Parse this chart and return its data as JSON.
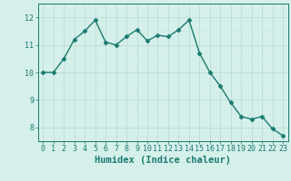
{
  "x": [
    0,
    1,
    2,
    3,
    4,
    5,
    6,
    7,
    8,
    9,
    10,
    11,
    12,
    13,
    14,
    15,
    16,
    17,
    18,
    19,
    20,
    21,
    22,
    23
  ],
  "y": [
    10.0,
    10.0,
    10.5,
    11.2,
    11.5,
    11.9,
    11.1,
    11.0,
    11.3,
    11.55,
    11.15,
    11.35,
    11.3,
    11.55,
    11.9,
    10.7,
    10.0,
    9.5,
    8.9,
    8.4,
    8.3,
    8.4,
    7.95,
    7.7
  ],
  "line_color": "#1a7a6e",
  "bg_color": "#d5f0eb",
  "xlabel": "Humidex (Indice chaleur)",
  "ylim": [
    7.5,
    12.5
  ],
  "xlim": [
    -0.5,
    23.5
  ],
  "yticks": [
    8,
    9,
    10,
    11,
    12
  ],
  "xticks": [
    0,
    1,
    2,
    3,
    4,
    5,
    6,
    7,
    8,
    9,
    10,
    11,
    12,
    13,
    14,
    15,
    16,
    17,
    18,
    19,
    20,
    21,
    22,
    23
  ],
  "marker": "D",
  "marker_size": 2.5,
  "line_width": 1.0,
  "xlabel_fontsize": 7.5,
  "tick_fontsize": 6.0,
  "tick_color": "#1a7a6e",
  "grid_major_color": "#b8d8d0",
  "grid_minor_color": "#cce8e2"
}
